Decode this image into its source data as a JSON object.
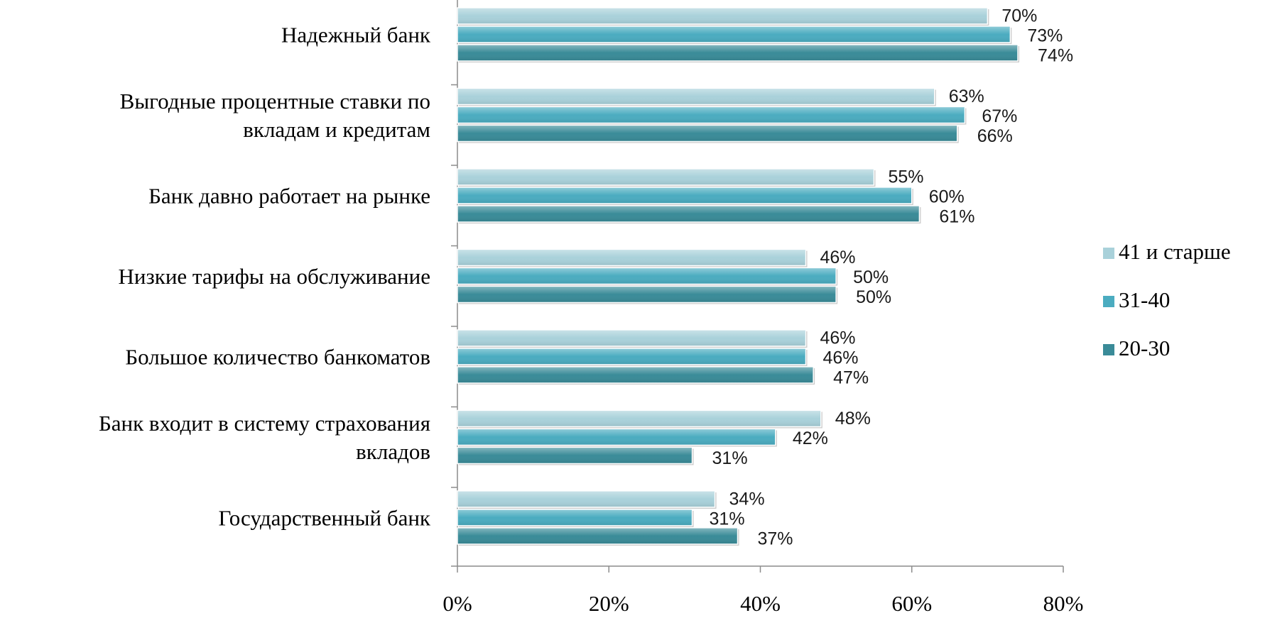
{
  "chart_data": {
    "type": "bar",
    "orientation": "horizontal",
    "categories": [
      [
        "Надежный банк"
      ],
      [
        "Выгодные процентные ставки по",
        "вкладам и кредитам"
      ],
      [
        "Банк давно работает на рынке"
      ],
      [
        "Низкие тарифы на обслуживание"
      ],
      [
        "Большое количество банкоматов"
      ],
      [
        "Банк входит в систему страхования",
        "вкладов"
      ],
      [
        "Государственный банк"
      ]
    ],
    "series": [
      {
        "name": "41 и старше",
        "color": "#a9d1da",
        "values": [
          70,
          63,
          55,
          46,
          46,
          48,
          34
        ]
      },
      {
        "name": "31-40",
        "color": "#4bacc0",
        "values": [
          73,
          67,
          60,
          50,
          46,
          42,
          31
        ]
      },
      {
        "name": "20-30",
        "color": "#3a8b98",
        "values": [
          74,
          66,
          61,
          50,
          47,
          31,
          37
        ]
      }
    ],
    "value_suffix": "%",
    "xlim": [
      0,
      80
    ],
    "xticks": [
      0,
      20,
      40,
      60,
      80
    ],
    "xtick_labels": [
      "0%",
      "20%",
      "40%",
      "60%",
      "80%"
    ],
    "legend_position": "right",
    "grid": false
  }
}
